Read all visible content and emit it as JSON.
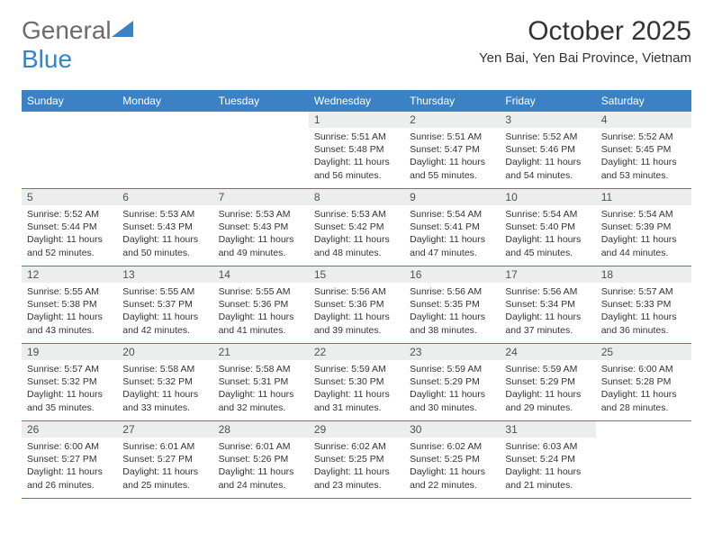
{
  "brand": {
    "part1": "General",
    "part2": "Blue"
  },
  "colors": {
    "accent": "#3b82c4",
    "daynum_bg": "#eceded",
    "text": "#333333",
    "logo_gray": "#6b6b6b",
    "background": "#ffffff"
  },
  "title": "October 2025",
  "location": "Yen Bai, Yen Bai Province, Vietnam",
  "weekdays": [
    "Sunday",
    "Monday",
    "Tuesday",
    "Wednesday",
    "Thursday",
    "Friday",
    "Saturday"
  ],
  "weeks": [
    [
      {
        "num": "",
        "sunrise": "",
        "sunset": "",
        "daylight": ""
      },
      {
        "num": "",
        "sunrise": "",
        "sunset": "",
        "daylight": ""
      },
      {
        "num": "",
        "sunrise": "",
        "sunset": "",
        "daylight": ""
      },
      {
        "num": "1",
        "sunrise": "Sunrise: 5:51 AM",
        "sunset": "Sunset: 5:48 PM",
        "daylight": "Daylight: 11 hours and 56 minutes."
      },
      {
        "num": "2",
        "sunrise": "Sunrise: 5:51 AM",
        "sunset": "Sunset: 5:47 PM",
        "daylight": "Daylight: 11 hours and 55 minutes."
      },
      {
        "num": "3",
        "sunrise": "Sunrise: 5:52 AM",
        "sunset": "Sunset: 5:46 PM",
        "daylight": "Daylight: 11 hours and 54 minutes."
      },
      {
        "num": "4",
        "sunrise": "Sunrise: 5:52 AM",
        "sunset": "Sunset: 5:45 PM",
        "daylight": "Daylight: 11 hours and 53 minutes."
      }
    ],
    [
      {
        "num": "5",
        "sunrise": "Sunrise: 5:52 AM",
        "sunset": "Sunset: 5:44 PM",
        "daylight": "Daylight: 11 hours and 52 minutes."
      },
      {
        "num": "6",
        "sunrise": "Sunrise: 5:53 AM",
        "sunset": "Sunset: 5:43 PM",
        "daylight": "Daylight: 11 hours and 50 minutes."
      },
      {
        "num": "7",
        "sunrise": "Sunrise: 5:53 AM",
        "sunset": "Sunset: 5:43 PM",
        "daylight": "Daylight: 11 hours and 49 minutes."
      },
      {
        "num": "8",
        "sunrise": "Sunrise: 5:53 AM",
        "sunset": "Sunset: 5:42 PM",
        "daylight": "Daylight: 11 hours and 48 minutes."
      },
      {
        "num": "9",
        "sunrise": "Sunrise: 5:54 AM",
        "sunset": "Sunset: 5:41 PM",
        "daylight": "Daylight: 11 hours and 47 minutes."
      },
      {
        "num": "10",
        "sunrise": "Sunrise: 5:54 AM",
        "sunset": "Sunset: 5:40 PM",
        "daylight": "Daylight: 11 hours and 45 minutes."
      },
      {
        "num": "11",
        "sunrise": "Sunrise: 5:54 AM",
        "sunset": "Sunset: 5:39 PM",
        "daylight": "Daylight: 11 hours and 44 minutes."
      }
    ],
    [
      {
        "num": "12",
        "sunrise": "Sunrise: 5:55 AM",
        "sunset": "Sunset: 5:38 PM",
        "daylight": "Daylight: 11 hours and 43 minutes."
      },
      {
        "num": "13",
        "sunrise": "Sunrise: 5:55 AM",
        "sunset": "Sunset: 5:37 PM",
        "daylight": "Daylight: 11 hours and 42 minutes."
      },
      {
        "num": "14",
        "sunrise": "Sunrise: 5:55 AM",
        "sunset": "Sunset: 5:36 PM",
        "daylight": "Daylight: 11 hours and 41 minutes."
      },
      {
        "num": "15",
        "sunrise": "Sunrise: 5:56 AM",
        "sunset": "Sunset: 5:36 PM",
        "daylight": "Daylight: 11 hours and 39 minutes."
      },
      {
        "num": "16",
        "sunrise": "Sunrise: 5:56 AM",
        "sunset": "Sunset: 5:35 PM",
        "daylight": "Daylight: 11 hours and 38 minutes."
      },
      {
        "num": "17",
        "sunrise": "Sunrise: 5:56 AM",
        "sunset": "Sunset: 5:34 PM",
        "daylight": "Daylight: 11 hours and 37 minutes."
      },
      {
        "num": "18",
        "sunrise": "Sunrise: 5:57 AM",
        "sunset": "Sunset: 5:33 PM",
        "daylight": "Daylight: 11 hours and 36 minutes."
      }
    ],
    [
      {
        "num": "19",
        "sunrise": "Sunrise: 5:57 AM",
        "sunset": "Sunset: 5:32 PM",
        "daylight": "Daylight: 11 hours and 35 minutes."
      },
      {
        "num": "20",
        "sunrise": "Sunrise: 5:58 AM",
        "sunset": "Sunset: 5:32 PM",
        "daylight": "Daylight: 11 hours and 33 minutes."
      },
      {
        "num": "21",
        "sunrise": "Sunrise: 5:58 AM",
        "sunset": "Sunset: 5:31 PM",
        "daylight": "Daylight: 11 hours and 32 minutes."
      },
      {
        "num": "22",
        "sunrise": "Sunrise: 5:59 AM",
        "sunset": "Sunset: 5:30 PM",
        "daylight": "Daylight: 11 hours and 31 minutes."
      },
      {
        "num": "23",
        "sunrise": "Sunrise: 5:59 AM",
        "sunset": "Sunset: 5:29 PM",
        "daylight": "Daylight: 11 hours and 30 minutes."
      },
      {
        "num": "24",
        "sunrise": "Sunrise: 5:59 AM",
        "sunset": "Sunset: 5:29 PM",
        "daylight": "Daylight: 11 hours and 29 minutes."
      },
      {
        "num": "25",
        "sunrise": "Sunrise: 6:00 AM",
        "sunset": "Sunset: 5:28 PM",
        "daylight": "Daylight: 11 hours and 28 minutes."
      }
    ],
    [
      {
        "num": "26",
        "sunrise": "Sunrise: 6:00 AM",
        "sunset": "Sunset: 5:27 PM",
        "daylight": "Daylight: 11 hours and 26 minutes."
      },
      {
        "num": "27",
        "sunrise": "Sunrise: 6:01 AM",
        "sunset": "Sunset: 5:27 PM",
        "daylight": "Daylight: 11 hours and 25 minutes."
      },
      {
        "num": "28",
        "sunrise": "Sunrise: 6:01 AM",
        "sunset": "Sunset: 5:26 PM",
        "daylight": "Daylight: 11 hours and 24 minutes."
      },
      {
        "num": "29",
        "sunrise": "Sunrise: 6:02 AM",
        "sunset": "Sunset: 5:25 PM",
        "daylight": "Daylight: 11 hours and 23 minutes."
      },
      {
        "num": "30",
        "sunrise": "Sunrise: 6:02 AM",
        "sunset": "Sunset: 5:25 PM",
        "daylight": "Daylight: 11 hours and 22 minutes."
      },
      {
        "num": "31",
        "sunrise": "Sunrise: 6:03 AM",
        "sunset": "Sunset: 5:24 PM",
        "daylight": "Daylight: 11 hours and 21 minutes."
      },
      {
        "num": "",
        "sunrise": "",
        "sunset": "",
        "daylight": ""
      }
    ]
  ]
}
